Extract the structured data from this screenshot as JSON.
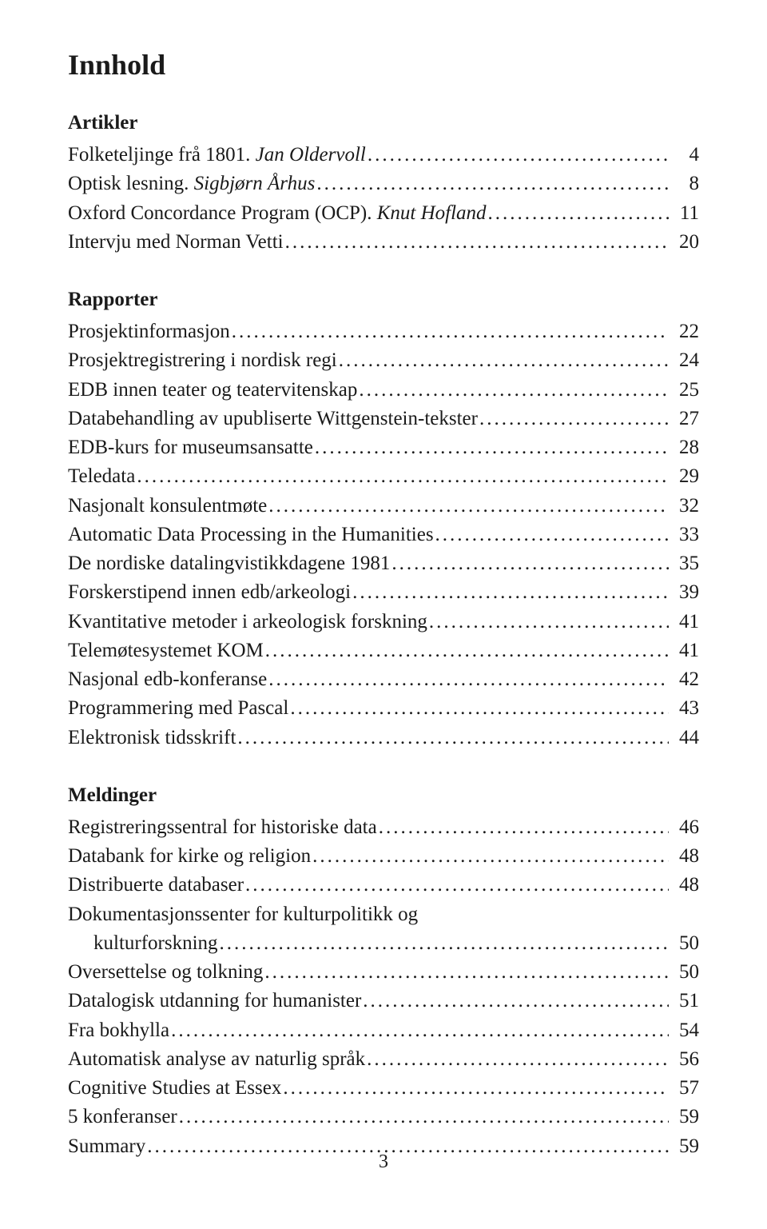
{
  "title": "Innhold",
  "page_number": "3",
  "typography": {
    "title_fontsize_pt": 27,
    "heading_fontsize_pt": 19,
    "body_fontsize_pt": 19,
    "font_family": "serif",
    "text_color": "#1a1a1a",
    "background_color": "#ffffff"
  },
  "sections": [
    {
      "heading": "Artikler",
      "entries": [
        {
          "label": "Folketeljinge frå 1801. ",
          "author": "Jan Oldervoll",
          "page": "4"
        },
        {
          "label": "Optisk lesning. ",
          "author": "Sigbjørn Århus",
          "page": "8"
        },
        {
          "label": "Oxford Concordance Program (OCP). ",
          "author": "Knut Hofland",
          "page": "11"
        },
        {
          "label": "Intervju med Norman Vetti",
          "page": "20"
        }
      ]
    },
    {
      "heading": "Rapporter",
      "entries": [
        {
          "label": "Prosjektinformasjon",
          "page": "22"
        },
        {
          "label": "Prosjektregistrering i nordisk regi",
          "page": "24"
        },
        {
          "label": "EDB innen teater og teatervitenskap",
          "page": "25"
        },
        {
          "label": "Databehandling av upubliserte Wittgenstein-tekster",
          "page": "27"
        },
        {
          "label": "EDB-kurs for museumsansatte",
          "page": "28"
        },
        {
          "label": "Teledata",
          "page": "29"
        },
        {
          "label": "Nasjonalt konsulentmøte",
          "page": "32"
        },
        {
          "label": "Automatic Data Processing in the Humanities",
          "page": "33"
        },
        {
          "label": "De nordiske datalingvistikkdagene 1981",
          "page": "35"
        },
        {
          "label": "Forskerstipend innen edb/arkeologi",
          "page": "39"
        },
        {
          "label": "Kvantitative metoder i arkeologisk forskning",
          "page": "41"
        },
        {
          "label": "Telemøtesystemet KOM",
          "page": "41"
        },
        {
          "label": "Nasjonal edb-konferanse",
          "page": "42"
        },
        {
          "label": "Programmering med Pascal",
          "page": "43"
        },
        {
          "label": "Elektronisk tidsskrift",
          "page": "44"
        }
      ]
    },
    {
      "heading": "Meldinger",
      "entries": [
        {
          "label": "Registreringssentral for historiske data",
          "page": "46"
        },
        {
          "label": "Databank for kirke og religion",
          "page": "48"
        },
        {
          "label": "Distribuerte databaser",
          "page": "48"
        },
        {
          "label_wrap_first": "Dokumentasjonssenter for kulturpolitikk og",
          "label": "kulturforskning",
          "indented": true,
          "page": "50"
        },
        {
          "label": "Oversettelse og tolkning",
          "page": "50"
        },
        {
          "label": "Datalogisk utdanning for humanister",
          "page": "51"
        },
        {
          "label": "Fra bokhylla",
          "page": "54"
        },
        {
          "label": "Automatisk analyse av naturlig språk",
          "page": "56"
        },
        {
          "label": "Cognitive Studies at Essex",
          "page": "57"
        },
        {
          "label": "5 konferanser",
          "page": "59"
        },
        {
          "label": "Summary",
          "page": "59"
        }
      ]
    }
  ]
}
